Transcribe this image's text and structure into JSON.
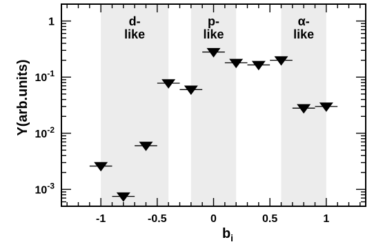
{
  "chart_data": {
    "type": "scatter",
    "xlabel": "b",
    "xlabel_subscript": "i",
    "ylabel": "Y(arb.units)",
    "xlim": [
      -1.35,
      1.35
    ],
    "ylim": [
      0.0005,
      2.0
    ],
    "yscale": "log",
    "grid": false,
    "x_ticks": [
      -1,
      -0.5,
      0,
      0.5,
      1
    ],
    "x_tick_labels": [
      "-1",
      "-0.5",
      "0",
      "0.5",
      "1"
    ],
    "y_ticks": [
      0.001,
      0.01,
      0.1,
      1
    ],
    "regions": [
      {
        "label_line1": "d-",
        "label_line2": "like",
        "x_range": [
          -1.0,
          -0.4
        ]
      },
      {
        "label_line1": "p-",
        "label_line2": "like",
        "x_range": [
          -0.2,
          0.2
        ]
      },
      {
        "label_line1": "α-",
        "label_line2": "like",
        "x_range": [
          0.6,
          1.0
        ]
      }
    ],
    "series": [
      {
        "marker": "down-triangle",
        "x": [
          -1.0,
          -0.8,
          -0.6,
          -0.4,
          -0.2,
          0.0,
          0.2,
          0.4,
          0.6,
          0.8,
          1.0
        ],
        "y": [
          0.0026,
          0.00075,
          0.006,
          0.078,
          0.06,
          0.28,
          0.18,
          0.165,
          0.2,
          0.028,
          0.03
        ],
        "xerr": 0.1
      }
    ]
  }
}
